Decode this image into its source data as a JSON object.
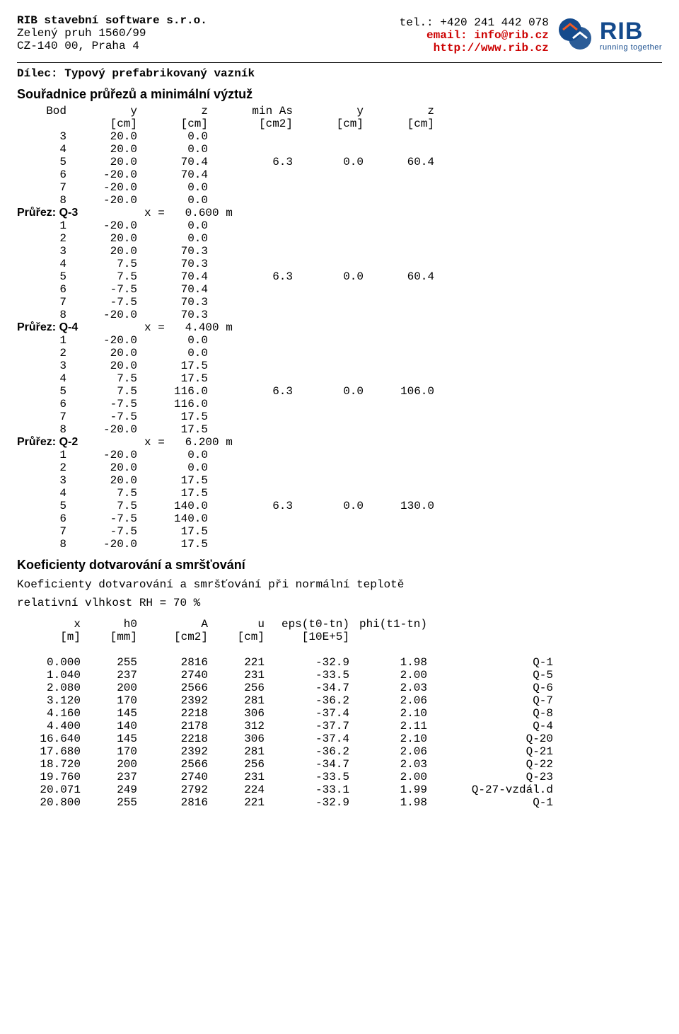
{
  "header": {
    "company_name": "RIB stavební software s.r.o.",
    "address_line1": "Zelený pruh 1560/99",
    "address_line2": "CZ-140 00, Praha 4",
    "tel_label": "tel.: ",
    "tel_value": "+420 241 442 078",
    "email_label": "email: ",
    "email_value": "info@rib.cz",
    "url": "http://www.rib.cz",
    "logo_text": "RIB",
    "logo_tagline": "running together",
    "logo_colors": {
      "primary": "#144a8c",
      "accent": "#f15a22"
    }
  },
  "piece_title": "Dílec: Typový prefabrikovaný vazník",
  "coord_section": {
    "title": "Souřadnice průřezů a minimální výztuž",
    "head": {
      "c0": "Bod",
      "c1": "y",
      "c2": "z",
      "c3": "min As",
      "c4": "y",
      "c5": "z"
    },
    "units": {
      "c1": "[cm]",
      "c2": "[cm]",
      "c3": "[cm2]",
      "c4": "[cm]",
      "c5": "[cm]"
    },
    "pre": [
      [
        "3",
        "20.0",
        "0.0",
        "",
        "",
        ""
      ],
      [
        "4",
        "20.0",
        "0.0",
        "",
        "",
        ""
      ],
      [
        "5",
        "20.0",
        "70.4",
        "6.3",
        "0.0",
        "60.4"
      ],
      [
        "6",
        "-20.0",
        "70.4",
        "",
        "",
        ""
      ],
      [
        "7",
        "-20.0",
        "0.0",
        "",
        "",
        ""
      ],
      [
        "8",
        "-20.0",
        "0.0",
        "",
        "",
        ""
      ]
    ],
    "groups": [
      {
        "label": "Průřez: Q-3",
        "x": "x =   0.600 m",
        "rows": [
          [
            "1",
            "-20.0",
            "0.0",
            "",
            "",
            ""
          ],
          [
            "2",
            "20.0",
            "0.0",
            "",
            "",
            ""
          ],
          [
            "3",
            "20.0",
            "70.3",
            "",
            "",
            ""
          ],
          [
            "4",
            "7.5",
            "70.3",
            "",
            "",
            ""
          ],
          [
            "5",
            "7.5",
            "70.4",
            "6.3",
            "0.0",
            "60.4"
          ],
          [
            "6",
            "-7.5",
            "70.4",
            "",
            "",
            ""
          ],
          [
            "7",
            "-7.5",
            "70.3",
            "",
            "",
            ""
          ],
          [
            "8",
            "-20.0",
            "70.3",
            "",
            "",
            ""
          ]
        ]
      },
      {
        "label": "Průřez: Q-4",
        "x": "x =   4.400 m",
        "rows": [
          [
            "1",
            "-20.0",
            "0.0",
            "",
            "",
            ""
          ],
          [
            "2",
            "20.0",
            "0.0",
            "",
            "",
            ""
          ],
          [
            "3",
            "20.0",
            "17.5",
            "",
            "",
            ""
          ],
          [
            "4",
            "7.5",
            "17.5",
            "",
            "",
            ""
          ],
          [
            "5",
            "7.5",
            "116.0",
            "6.3",
            "0.0",
            "106.0"
          ],
          [
            "6",
            "-7.5",
            "116.0",
            "",
            "",
            ""
          ],
          [
            "7",
            "-7.5",
            "17.5",
            "",
            "",
            ""
          ],
          [
            "8",
            "-20.0",
            "17.5",
            "",
            "",
            ""
          ]
        ]
      },
      {
        "label": "Průřez: Q-2",
        "x": "x =   6.200 m",
        "rows": [
          [
            "1",
            "-20.0",
            "0.0",
            "",
            "",
            ""
          ],
          [
            "2",
            "20.0",
            "0.0",
            "",
            "",
            ""
          ],
          [
            "3",
            "20.0",
            "17.5",
            "",
            "",
            ""
          ],
          [
            "4",
            "7.5",
            "17.5",
            "",
            "",
            ""
          ],
          [
            "5",
            "7.5",
            "140.0",
            "6.3",
            "0.0",
            "130.0"
          ],
          [
            "6",
            "-7.5",
            "140.0",
            "",
            "",
            ""
          ],
          [
            "7",
            "-7.5",
            "17.5",
            "",
            "",
            ""
          ],
          [
            "8",
            "-20.0",
            "17.5",
            "",
            "",
            ""
          ]
        ]
      }
    ]
  },
  "coef_section": {
    "title": "Koeficienty dotvarování a smršťování",
    "subtitle": "Koeficienty dotvarování a smršťování při normální teplotě",
    "rh": "relativní vlhkost RH =  70 %",
    "head": {
      "k0": "x",
      "k1": "h0",
      "k2": "A",
      "k3": "u",
      "k4": "eps(t0-tn)",
      "k5": "phi(t1-tn)"
    },
    "units": {
      "k0": "[m]",
      "k1": "[mm]",
      "k2": "[cm2]",
      "k3": "[cm]",
      "k4": "[10E+5]"
    },
    "rows": [
      [
        "0.000",
        "255",
        "2816",
        "221",
        "-32.9",
        "1.98",
        "Q-1"
      ],
      [
        "1.040",
        "237",
        "2740",
        "231",
        "-33.5",
        "2.00",
        "Q-5"
      ],
      [
        "2.080",
        "200",
        "2566",
        "256",
        "-34.7",
        "2.03",
        "Q-6"
      ],
      [
        "3.120",
        "170",
        "2392",
        "281",
        "-36.2",
        "2.06",
        "Q-7"
      ],
      [
        "4.160",
        "145",
        "2218",
        "306",
        "-37.4",
        "2.10",
        "Q-8"
      ],
      [
        "4.400",
        "140",
        "2178",
        "312",
        "-37.7",
        "2.11",
        "Q-4"
      ],
      [
        "16.640",
        "145",
        "2218",
        "306",
        "-37.4",
        "2.10",
        "Q-20"
      ],
      [
        "17.680",
        "170",
        "2392",
        "281",
        "-36.2",
        "2.06",
        "Q-21"
      ],
      [
        "18.720",
        "200",
        "2566",
        "256",
        "-34.7",
        "2.03",
        "Q-22"
      ],
      [
        "19.760",
        "237",
        "2740",
        "231",
        "-33.5",
        "2.00",
        "Q-23"
      ],
      [
        "20.071",
        "249",
        "2792",
        "224",
        "-33.1",
        "1.99",
        "Q-27-vzdál.d"
      ],
      [
        "20.800",
        "255",
        "2816",
        "221",
        "-32.9",
        "1.98",
        "Q-1"
      ]
    ]
  }
}
